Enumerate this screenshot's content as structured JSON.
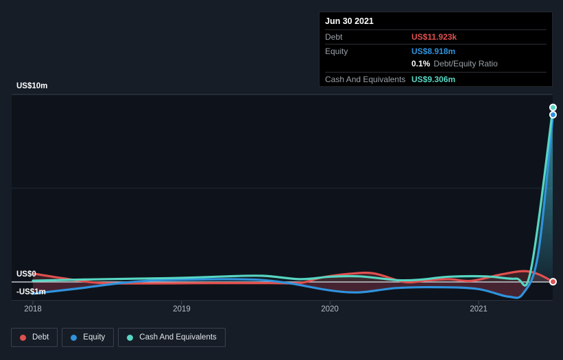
{
  "colors": {
    "page_bg": "#161d27",
    "plot_bg": "#0e131b",
    "zero_line": "#c3c9d1",
    "grid": "#38404d",
    "grid_faint": "#232a35",
    "tick": "#434c59",
    "negative_fill": "#d94f6a"
  },
  "tooltip": {
    "date": "Jun 30 2021",
    "debt_label": "Debt",
    "debt_value": "US$11.923k",
    "equity_label": "Equity",
    "equity_value": "US$8.918m",
    "ratio_pct": "0.1%",
    "ratio_label": "Debt/Equity Ratio",
    "cash_label": "Cash And Equivalents",
    "cash_value": "US$9.306m"
  },
  "y_axis": {
    "top": "US$10m",
    "zero": "US$0",
    "bottom": "-US$1m"
  },
  "legend": {
    "items": [
      {
        "label": "Debt"
      },
      {
        "label": "Equity"
      },
      {
        "label": "Cash And Equivalents"
      }
    ]
  },
  "chart_data": {
    "type": "line",
    "unit": "US$ millions",
    "title": "",
    "x_ticks": [
      "2018",
      "2019",
      "2020",
      "2021"
    ],
    "x_range": [
      2017.86,
      2021.5
    ],
    "ylim": [
      -1,
      10
    ],
    "y_gridlines": [
      10,
      5,
      0,
      -1
    ],
    "hover_date": "Jun 30 2021",
    "legend_position": "bottom-left",
    "series": [
      {
        "name": "Debt",
        "color": "#e0504f",
        "fill": "both",
        "end_value_label": "US$11.923k",
        "points": [
          [
            2018.0,
            0.45
          ],
          [
            2018.2,
            0.2
          ],
          [
            2018.45,
            -0.05
          ],
          [
            2018.8,
            -0.08
          ],
          [
            2019.2,
            -0.06
          ],
          [
            2019.6,
            -0.06
          ],
          [
            2019.8,
            -0.05
          ],
          [
            2019.95,
            0.25
          ],
          [
            2020.15,
            0.45
          ],
          [
            2020.3,
            0.45
          ],
          [
            2020.5,
            0.0
          ],
          [
            2020.65,
            0.08
          ],
          [
            2020.8,
            0.15
          ],
          [
            2020.95,
            0.06
          ],
          [
            2021.15,
            0.4
          ],
          [
            2021.3,
            0.58
          ],
          [
            2021.4,
            0.42
          ],
          [
            2021.5,
            0.012
          ]
        ]
      },
      {
        "name": "Equity",
        "color": "#2f93dd",
        "fill": "above+negbelow",
        "end_value_label": "US$8.918m",
        "points": [
          [
            2018.0,
            -0.62
          ],
          [
            2018.3,
            -0.35
          ],
          [
            2018.6,
            -0.05
          ],
          [
            2018.8,
            0.08
          ],
          [
            2019.0,
            0.12
          ],
          [
            2019.3,
            0.15
          ],
          [
            2019.55,
            0.1
          ],
          [
            2019.75,
            -0.1
          ],
          [
            2020.0,
            -0.45
          ],
          [
            2020.2,
            -0.55
          ],
          [
            2020.45,
            -0.32
          ],
          [
            2020.75,
            -0.28
          ],
          [
            2021.0,
            -0.38
          ],
          [
            2021.2,
            -0.78
          ],
          [
            2021.3,
            -0.6
          ],
          [
            2021.4,
            1.5
          ],
          [
            2021.5,
            8.918
          ]
        ]
      },
      {
        "name": "Cash And Equivalents",
        "color": "#57d6c3",
        "fill": "above",
        "end_value_label": "US$9.306m",
        "points": [
          [
            2018.0,
            0.07
          ],
          [
            2018.35,
            0.13
          ],
          [
            2018.7,
            0.18
          ],
          [
            2019.0,
            0.22
          ],
          [
            2019.3,
            0.3
          ],
          [
            2019.55,
            0.33
          ],
          [
            2019.8,
            0.15
          ],
          [
            2020.0,
            0.28
          ],
          [
            2020.2,
            0.3
          ],
          [
            2020.45,
            0.1
          ],
          [
            2020.6,
            0.12
          ],
          [
            2020.8,
            0.28
          ],
          [
            2021.05,
            0.3
          ],
          [
            2021.25,
            0.18
          ],
          [
            2021.35,
            0.6
          ],
          [
            2021.5,
            9.306
          ]
        ]
      }
    ]
  }
}
